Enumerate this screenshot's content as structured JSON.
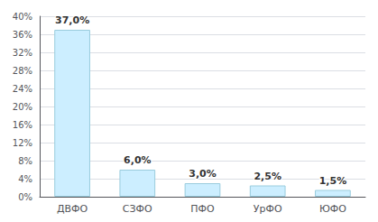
{
  "chart_data": {
    "type": "bar",
    "categories": [
      "ДВФО",
      "СЗФО",
      "ПФО",
      "УрФО",
      "ЮФО"
    ],
    "values": [
      37.0,
      6.0,
      3.0,
      2.5,
      1.5
    ],
    "value_labels": [
      "37,0%",
      "6,0%",
      "3,0%",
      "2,5%",
      "1,5%"
    ],
    "data_labels": true,
    "color": "#cceeff",
    "ylim": [
      0,
      40
    ],
    "yticks": [
      {
        "value": 0,
        "label": "0%"
      },
      {
        "value": 4,
        "label": "4%"
      },
      {
        "value": 8,
        "label": "8%"
      },
      {
        "value": 12,
        "label": "12%"
      },
      {
        "value": 16,
        "label": "16%"
      },
      {
        "value": 20,
        "label": "20%"
      },
      {
        "value": 24,
        "label": "24%"
      },
      {
        "value": 28,
        "label": "28%"
      },
      {
        "value": 32,
        "label": "32%"
      },
      {
        "value": 36,
        "label": "36%"
      },
      {
        "value": 40,
        "label": "40%"
      }
    ],
    "grid": true
  }
}
